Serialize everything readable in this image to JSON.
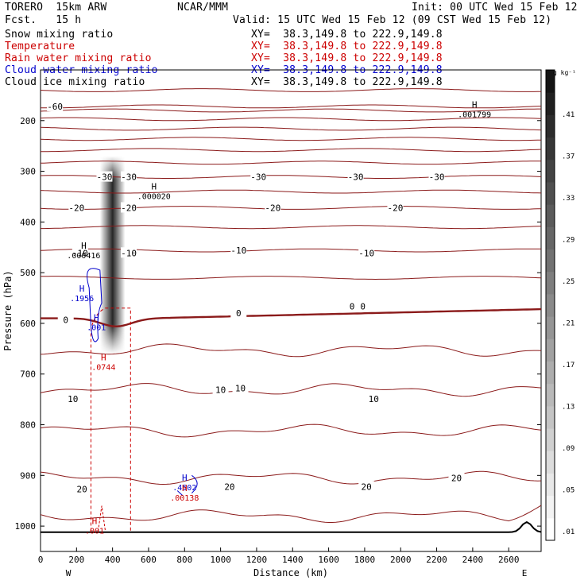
{
  "header": {
    "model": "TORERO  15km ARW",
    "forecast": "Fcst.   15 h",
    "center": "NCAR/MMM",
    "init": "Init: 00 UTC Wed 15 Feb 12",
    "valid": "Valid: 15 UTC Wed 15 Feb 12 (09 CST Wed 15 Feb 12)"
  },
  "fields": [
    {
      "name": "Snow mixing ratio",
      "xy": "XY=  38.3,149.8 to 222.9,149.8",
      "color": "#000000"
    },
    {
      "name": "Temperature",
      "xy": "XY=  38.3,149.8 to 222.9,149.8",
      "color": "#cc0000"
    },
    {
      "name": "Rain water mixing ratio",
      "xy": "XY=  38.3,149.8 to 222.9,149.8",
      "color": "#cc0000"
    },
    {
      "name": "Cloud water mixing ratio",
      "xy": "XY=  38.3,149.8 to 222.9,149.8",
      "color": "#0000cc"
    },
    {
      "name": "Cloud ice mixing ratio",
      "xy": "XY=  38.3,149.8 to 222.9,149.8",
      "color": "#000000"
    }
  ],
  "chart_data": {
    "type": "cross-section contour",
    "xlabel": "Distance (km)",
    "ylabel": "Pressure (hPa)",
    "xlim": [
      0,
      2780
    ],
    "ylim": [
      1050,
      100
    ],
    "x_ticks": [
      0,
      200,
      400,
      600,
      800,
      1000,
      1200,
      1400,
      1600,
      1800,
      2000,
      2200,
      2400,
      2600
    ],
    "y_ticks": [
      200,
      300,
      400,
      500,
      600,
      700,
      800,
      900,
      1000
    ],
    "x_end_labels": {
      "left": "W",
      "right": "E"
    },
    "colorbar": {
      "unit": "g kg⁻¹",
      "ticks": [
        ".01",
        ".05",
        ".09",
        ".13",
        ".17",
        ".21",
        ".25",
        ".29",
        ".33",
        ".37",
        ".41"
      ]
    },
    "temperature_contour_labels": [
      {
        "x": 80,
        "p": 172,
        "label": "-60"
      },
      {
        "x": 355,
        "p": 311,
        "label": "-30"
      },
      {
        "x": 490,
        "p": 311,
        "label": "-30"
      },
      {
        "x": 1210,
        "p": 311,
        "label": "-30"
      },
      {
        "x": 1750,
        "p": 311,
        "label": "-30"
      },
      {
        "x": 2200,
        "p": 311,
        "label": "-30"
      },
      {
        "x": 200,
        "p": 372,
        "label": "-20"
      },
      {
        "x": 490,
        "p": 372,
        "label": "-20"
      },
      {
        "x": 1290,
        "p": 372,
        "label": "-20"
      },
      {
        "x": 1970,
        "p": 372,
        "label": "-20"
      },
      {
        "x": 220,
        "p": 461,
        "label": "-10"
      },
      {
        "x": 490,
        "p": 461,
        "label": "-10"
      },
      {
        "x": 1100,
        "p": 456,
        "label": "-10"
      },
      {
        "x": 1810,
        "p": 461,
        "label": "-10"
      },
      {
        "x": 140,
        "p": 593,
        "label": "0"
      },
      {
        "x": 1100,
        "p": 580,
        "label": "0"
      },
      {
        "x": 1730,
        "p": 566,
        "label": "0"
      },
      {
        "x": 1790,
        "p": 566,
        "label": "0"
      },
      {
        "x": 180,
        "p": 749,
        "label": "10"
      },
      {
        "x": 1000,
        "p": 731,
        "label": "10"
      },
      {
        "x": 1110,
        "p": 728,
        "label": "10"
      },
      {
        "x": 1850,
        "p": 749,
        "label": "10"
      },
      {
        "x": 230,
        "p": 927,
        "label": "20"
      },
      {
        "x": 1050,
        "p": 922,
        "label": "20"
      },
      {
        "x": 1810,
        "p": 922,
        "label": "20"
      },
      {
        "x": 2310,
        "p": 905,
        "label": "20"
      }
    ],
    "extrema": [
      {
        "x": 240,
        "p": 462,
        "value": ".000416",
        "color": "#000000"
      },
      {
        "x": 630,
        "p": 345,
        "value": ".000020",
        "color": "#000000"
      },
      {
        "x": 2410,
        "p": 184,
        "value": ".001799",
        "color": "#000000"
      },
      {
        "x": 230,
        "p": 547,
        "value": ".1956",
        "color": "#0000cc"
      },
      {
        "x": 310,
        "p": 604,
        "value": ".001",
        "color": "#0000cc"
      },
      {
        "x": 350,
        "p": 682,
        "value": ".0744",
        "color": "#cc0000"
      },
      {
        "x": 800,
        "p": 920,
        "value": ".4502",
        "color": "#0000cc"
      },
      {
        "x": 800,
        "p": 940,
        "value": ".00138",
        "color": "#cc0000"
      },
      {
        "x": 300,
        "p": 1005,
        "value": ".001",
        "color": "#cc0000"
      }
    ]
  }
}
